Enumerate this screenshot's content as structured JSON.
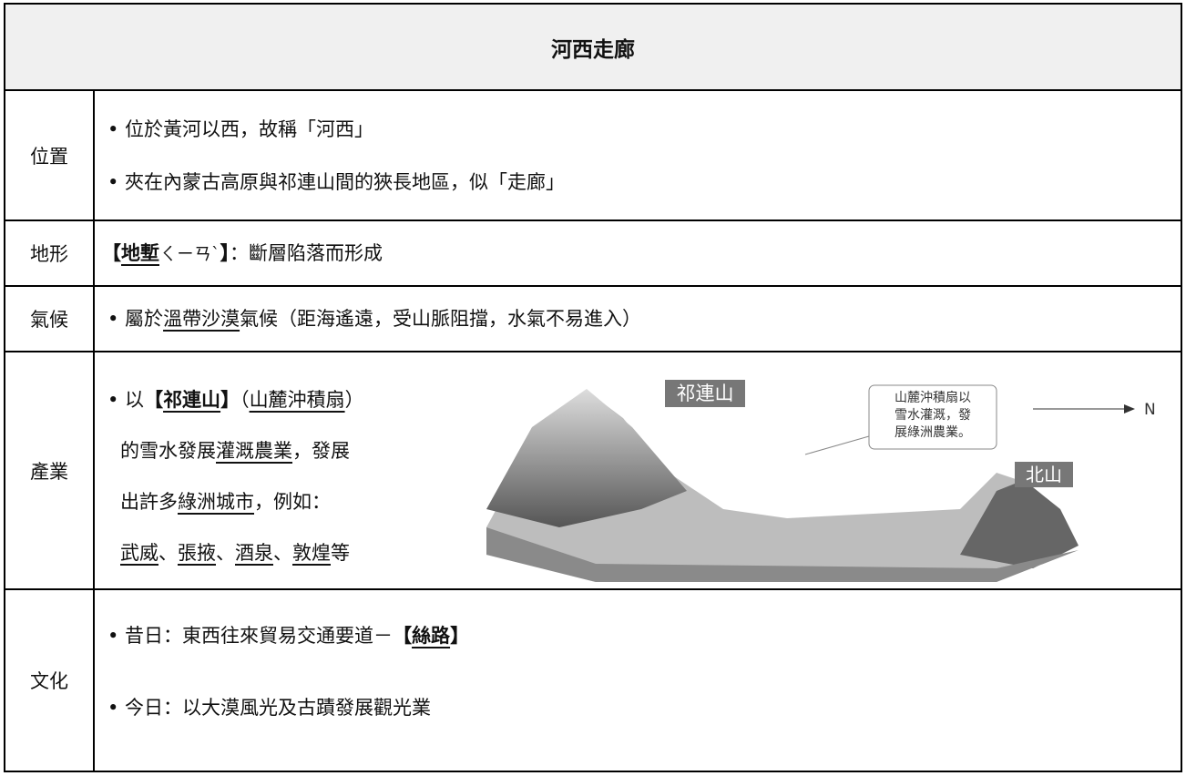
{
  "title": "河西走廊",
  "rows": [
    {
      "label": "位置",
      "lines": [
        [
          "• 位於黃河以西，故稱「河西」"
        ],
        [
          "• 夾在內蒙古高原與祁連山間的狹長地區，似「走廊」"
        ]
      ]
    },
    {
      "label": "地形",
      "lines": [
        [
          "【",
          "地塹",
          "ㄑㄧㄢˋ",
          "】",
          "：斷層陷落而形成"
        ]
      ]
    },
    {
      "label": "氣候",
      "lines": [
        [
          "• 屬於",
          "溫帶沙漠",
          "氣候（距海遙遠，受山脈阻擋，水氣不易進入）"
        ]
      ]
    },
    {
      "label": "產業",
      "lines": [
        [
          "• 以",
          "【",
          "祁連山",
          "】",
          "（",
          "山麓沖積扇",
          "）"
        ],
        [
          "的雪水發展",
          "灌溉農業",
          "，發展"
        ],
        [
          "出許多",
          "綠洲城市",
          "，例如："
        ],
        [
          "武威",
          "、",
          "張掖",
          "、",
          "酒泉",
          "、",
          "敦煌",
          "等"
        ]
      ],
      "figure": {
        "mountain_label": "祁連山",
        "callout": [
          "山麓沖積扇以",
          "雪水灌溉，發",
          "展綠洲農業。"
        ],
        "north_mountain_label": "北山",
        "direction": "N"
      }
    },
    {
      "label": "文化",
      "lines": [
        [
          "• 昔日：東西往來貿易交通要道－",
          "【",
          "絲路",
          "】"
        ],
        [
          "• 今日：以大漠風光及古蹟發展觀光業"
        ]
      ]
    }
  ]
}
